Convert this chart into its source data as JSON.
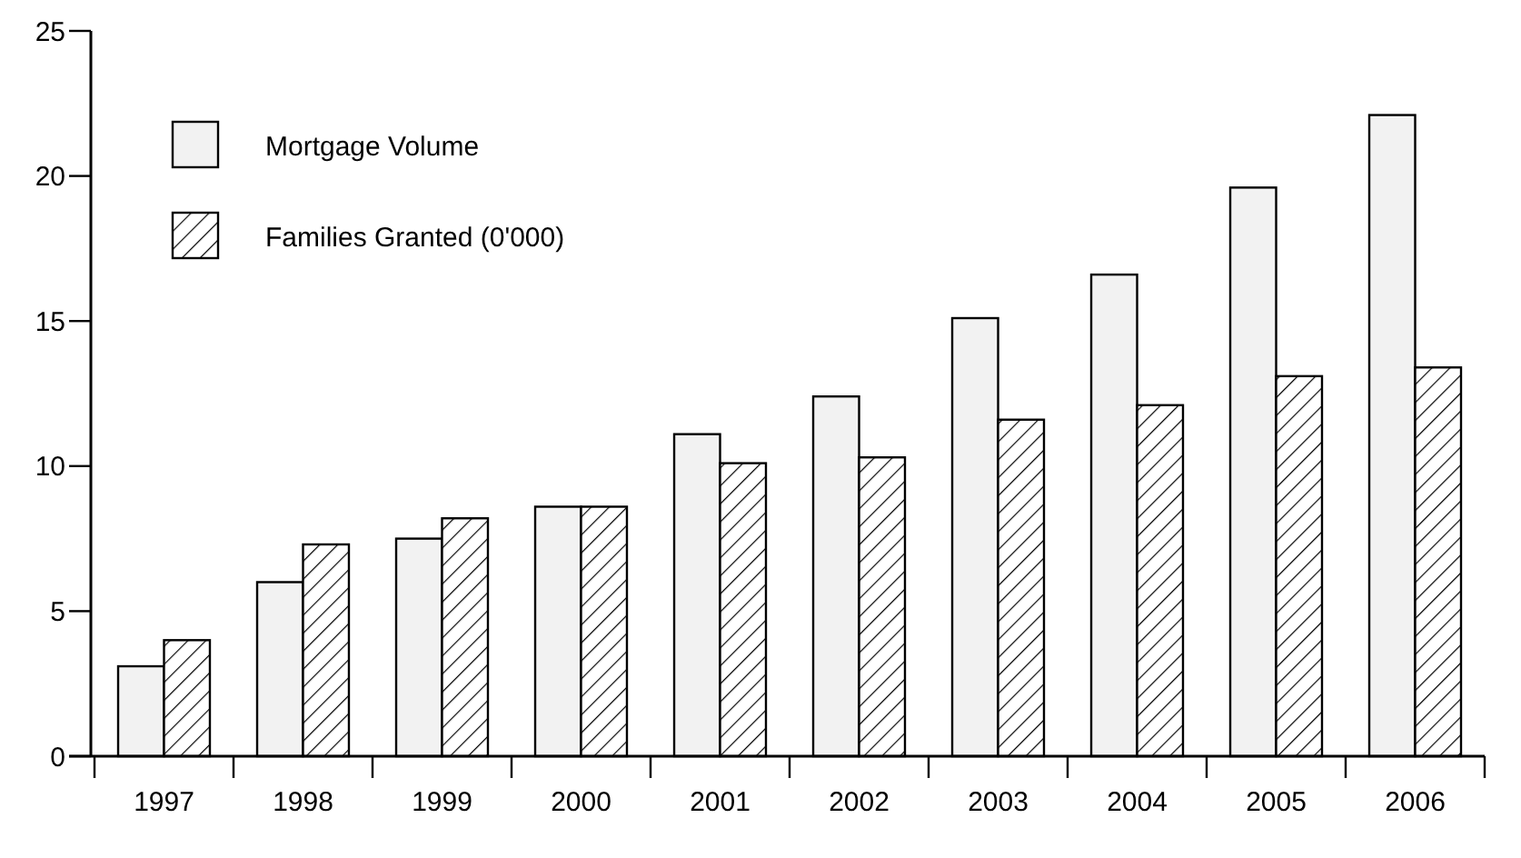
{
  "chart_data": {
    "type": "bar",
    "categories": [
      "1997",
      "1998",
      "1999",
      "2000",
      "2001",
      "2002",
      "2003",
      "2004",
      "2005",
      "2006"
    ],
    "series": [
      {
        "name": "Mortgage Volume",
        "color": "#f2f2f2",
        "values": [
          3.1,
          6.0,
          7.5,
          8.6,
          11.1,
          12.4,
          15.1,
          16.6,
          19.6,
          22.1
        ]
      },
      {
        "name": "Families Granted (0'000)",
        "color": "#000000",
        "values": [
          4.0,
          7.3,
          8.2,
          8.6,
          10.1,
          10.3,
          11.6,
          12.1,
          13.1,
          13.4
        ]
      }
    ],
    "ylim": [
      0,
      25
    ],
    "yticks": [
      0,
      5,
      10,
      15,
      20,
      25
    ],
    "grid": false,
    "legend": "top left"
  }
}
